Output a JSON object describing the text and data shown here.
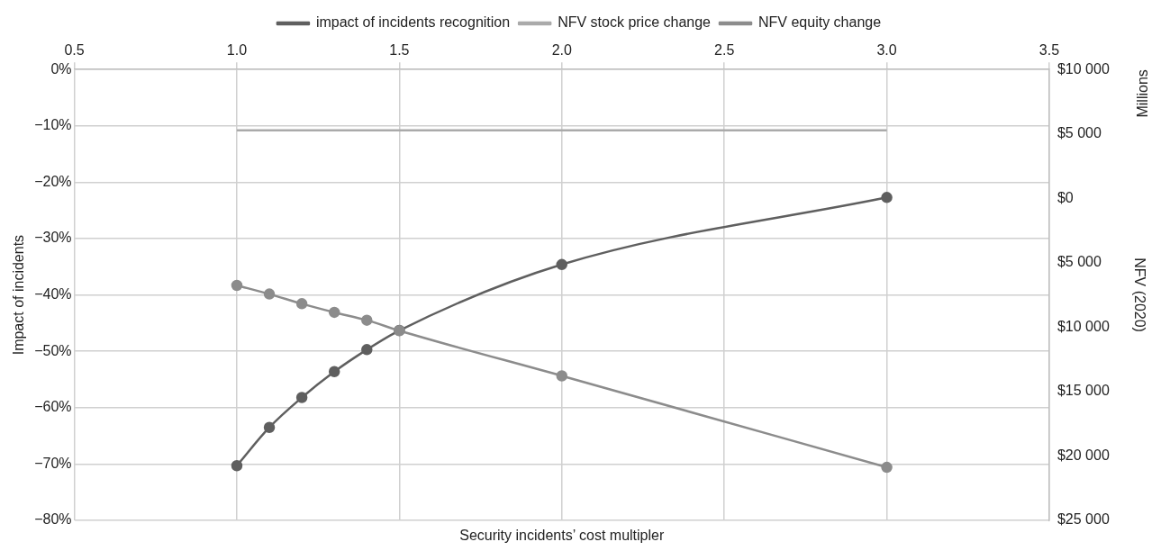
{
  "chart_data": {
    "type": "line",
    "xlabel": "Security incidents’ cost multipler",
    "ylabel": "Impact of incidents",
    "y2label": "NFV (2020)",
    "annotations": [
      "Millions"
    ],
    "xlim": [
      0.5,
      3.5
    ],
    "xticks": [
      {
        "value": 0.5,
        "label": "0.5"
      },
      {
        "value": 1,
        "label": "1.0"
      },
      {
        "value": 1.5,
        "label": "1.5"
      },
      {
        "value": 2,
        "label": "2.0"
      },
      {
        "value": 2.5,
        "label": "2.5"
      },
      {
        "value": 3,
        "label": "3.0"
      },
      {
        "value": 3.5,
        "label": "3.5"
      }
    ],
    "ylim": [
      -80,
      0
    ],
    "yticks": [
      {
        "value": 0,
        "label": "0%"
      },
      {
        "value": -10,
        "label": "−10%"
      },
      {
        "value": -20,
        "label": "−20%"
      },
      {
        "value": -30,
        "label": "−30%"
      },
      {
        "value": -40,
        "label": "−40%"
      },
      {
        "value": -50,
        "label": "−50%"
      },
      {
        "value": -60,
        "label": "−60%"
      },
      {
        "value": -70,
        "label": "−70%"
      },
      {
        "value": -80,
        "label": "−80%"
      }
    ],
    "y2lim": [
      -25000,
      10000
    ],
    "y2ticks": [
      {
        "value": 10000,
        "label": "$10 000"
      },
      {
        "value": 5000,
        "label": "$5 000"
      },
      {
        "value": 0,
        "label": "$0"
      },
      {
        "value": -5000,
        "label": "$5 000"
      },
      {
        "value": -10000,
        "label": "$10 000"
      },
      {
        "value": -15000,
        "label": "$15 000"
      },
      {
        "value": -20000,
        "label": "$20 000"
      },
      {
        "value": -25000,
        "label": "$25 000"
      }
    ],
    "grid": true,
    "legend": "top",
    "marker": "circle",
    "line_style": "solid",
    "series": [
      {
        "name": "impact of incidents recognition",
        "color": "#5f5f5f",
        "x": [
          1,
          1.1,
          1.2,
          1.3,
          1.4,
          1.5,
          2,
          3
        ],
        "values": [
          -70.3,
          -63.5,
          -58.2,
          -53.6,
          -49.7,
          -46.3,
          -34.6,
          -22.7
        ]
      },
      {
        "name": "NFV stock price change",
        "color": "#aaaaaa",
        "marker": "none",
        "x": [
          1,
          3
        ],
        "values": [
          -10.8,
          -10.8
        ]
      },
      {
        "name": "NFV equity change",
        "color": "#8c8c8c",
        "axis": "y2",
        "x": [
          1,
          1.1,
          1.2,
          1.3,
          1.4,
          1.5,
          2,
          3
        ],
        "values": [
          -6760,
          -7430,
          -8180,
          -8850,
          -9460,
          -10270,
          -13780,
          -20880
        ]
      }
    ]
  }
}
